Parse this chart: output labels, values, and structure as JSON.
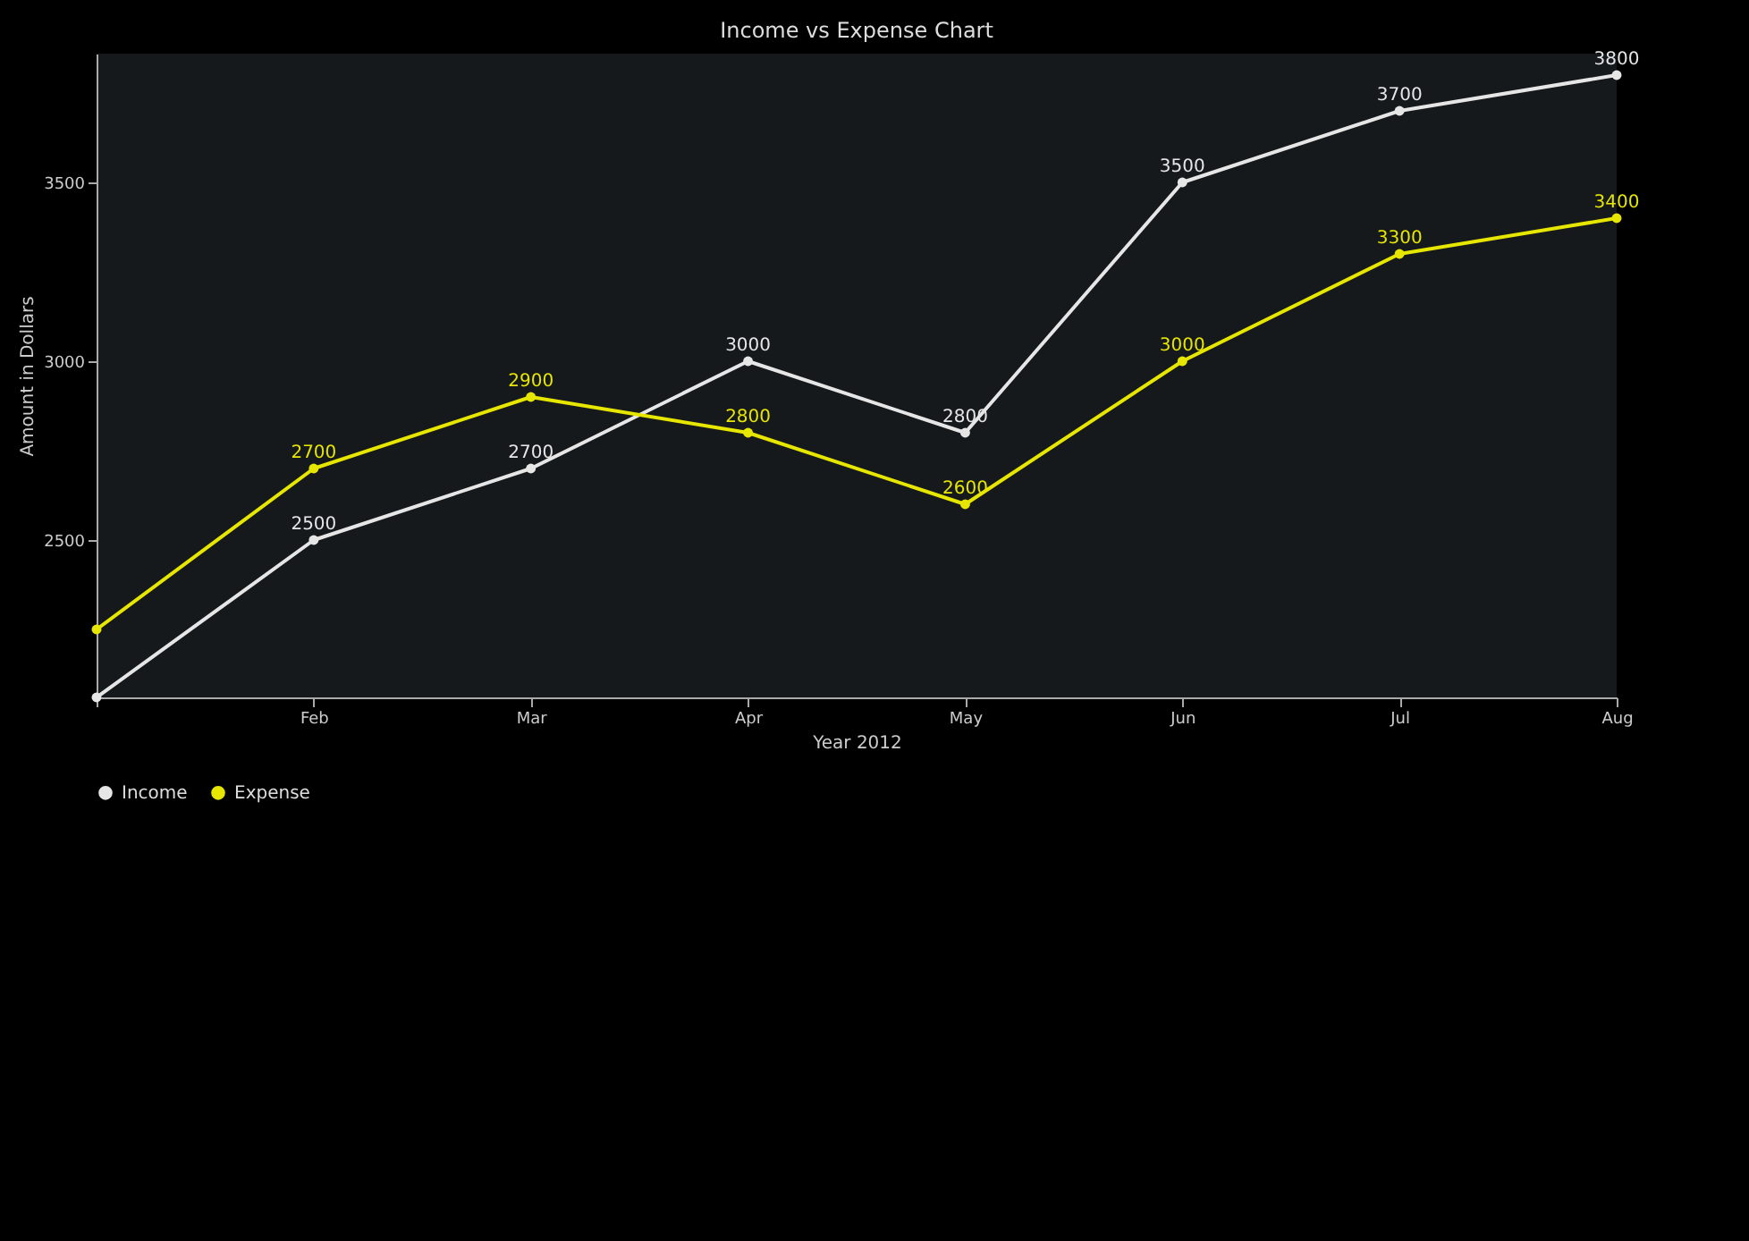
{
  "chart_data": {
    "type": "line",
    "title": "Income vs Expense Chart",
    "xlabel": "Year 2012",
    "ylabel": "Amount in Dollars",
    "categories": [
      null,
      "Feb",
      "Mar",
      "Apr",
      "May",
      "Jun",
      "Jul",
      "Aug"
    ],
    "series": [
      {
        "name": "Income",
        "color": "#e6e6e6",
        "values": [
          2060,
          2500,
          2700,
          3000,
          2800,
          3500,
          3700,
          3800
        ],
        "value_labels": [
          null,
          "2500",
          "2700",
          "3000",
          "2800",
          "3500",
          "3700",
          "3800"
        ]
      },
      {
        "name": "Expense",
        "color": "#e6e600",
        "values": [
          2250,
          2700,
          2900,
          2800,
          2600,
          3000,
          3300,
          3400
        ],
        "value_labels": [
          null,
          "2700",
          "2900",
          "2800",
          "2600",
          "3000",
          "3300",
          "3400"
        ]
      }
    ],
    "ylim": [
      2060,
      3860
    ],
    "yticks": [
      2500,
      3000,
      3500
    ],
    "grid": false,
    "legend": "bottom left",
    "marker": "circle",
    "line_style": "solid"
  }
}
